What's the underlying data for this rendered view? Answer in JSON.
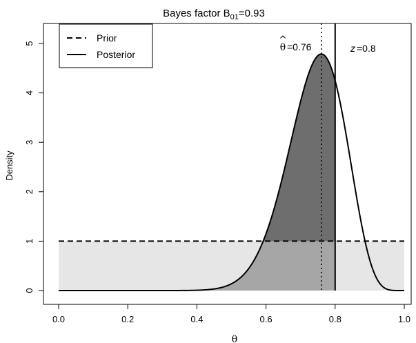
{
  "chart_data": {
    "type": "line",
    "title_main": "Bayes factor B",
    "title_sub": "01",
    "title_tail": "=0.93",
    "xlabel": "θ",
    "ylabel": "Density",
    "xlim": [
      0,
      1
    ],
    "ylim": [
      0,
      5.3
    ],
    "xticks": [
      "0.0",
      "0.2",
      "0.4",
      "0.6",
      "0.8",
      "1.0"
    ],
    "xtick_values": [
      0,
      0.2,
      0.4,
      0.6,
      0.8,
      1.0
    ],
    "yticks": [
      "0",
      "1",
      "2",
      "3",
      "4",
      "5"
    ],
    "ytick_values": [
      0,
      1,
      2,
      3,
      4,
      5
    ],
    "legend": {
      "position": "top-left",
      "entries": [
        {
          "label": "Prior",
          "style": "dashed"
        },
        {
          "label": "Posterior",
          "style": "solid"
        }
      ]
    },
    "prior": {
      "name": "Prior",
      "distribution": "uniform",
      "value": 1
    },
    "posterior": {
      "name": "Posterior",
      "distribution": "beta",
      "alpha": 20,
      "beta": 7
    },
    "annotations": {
      "theta_hat_label": "=0.76",
      "theta_hat": 0.76,
      "z_label": "z",
      "z_value_label": "=0.8",
      "z": 0.8
    },
    "colors": {
      "light_fill": "#e6e6e6",
      "medium_fill": "#a6a6a6",
      "dark_fill": "#6e6e6e",
      "line": "#000000"
    }
  }
}
